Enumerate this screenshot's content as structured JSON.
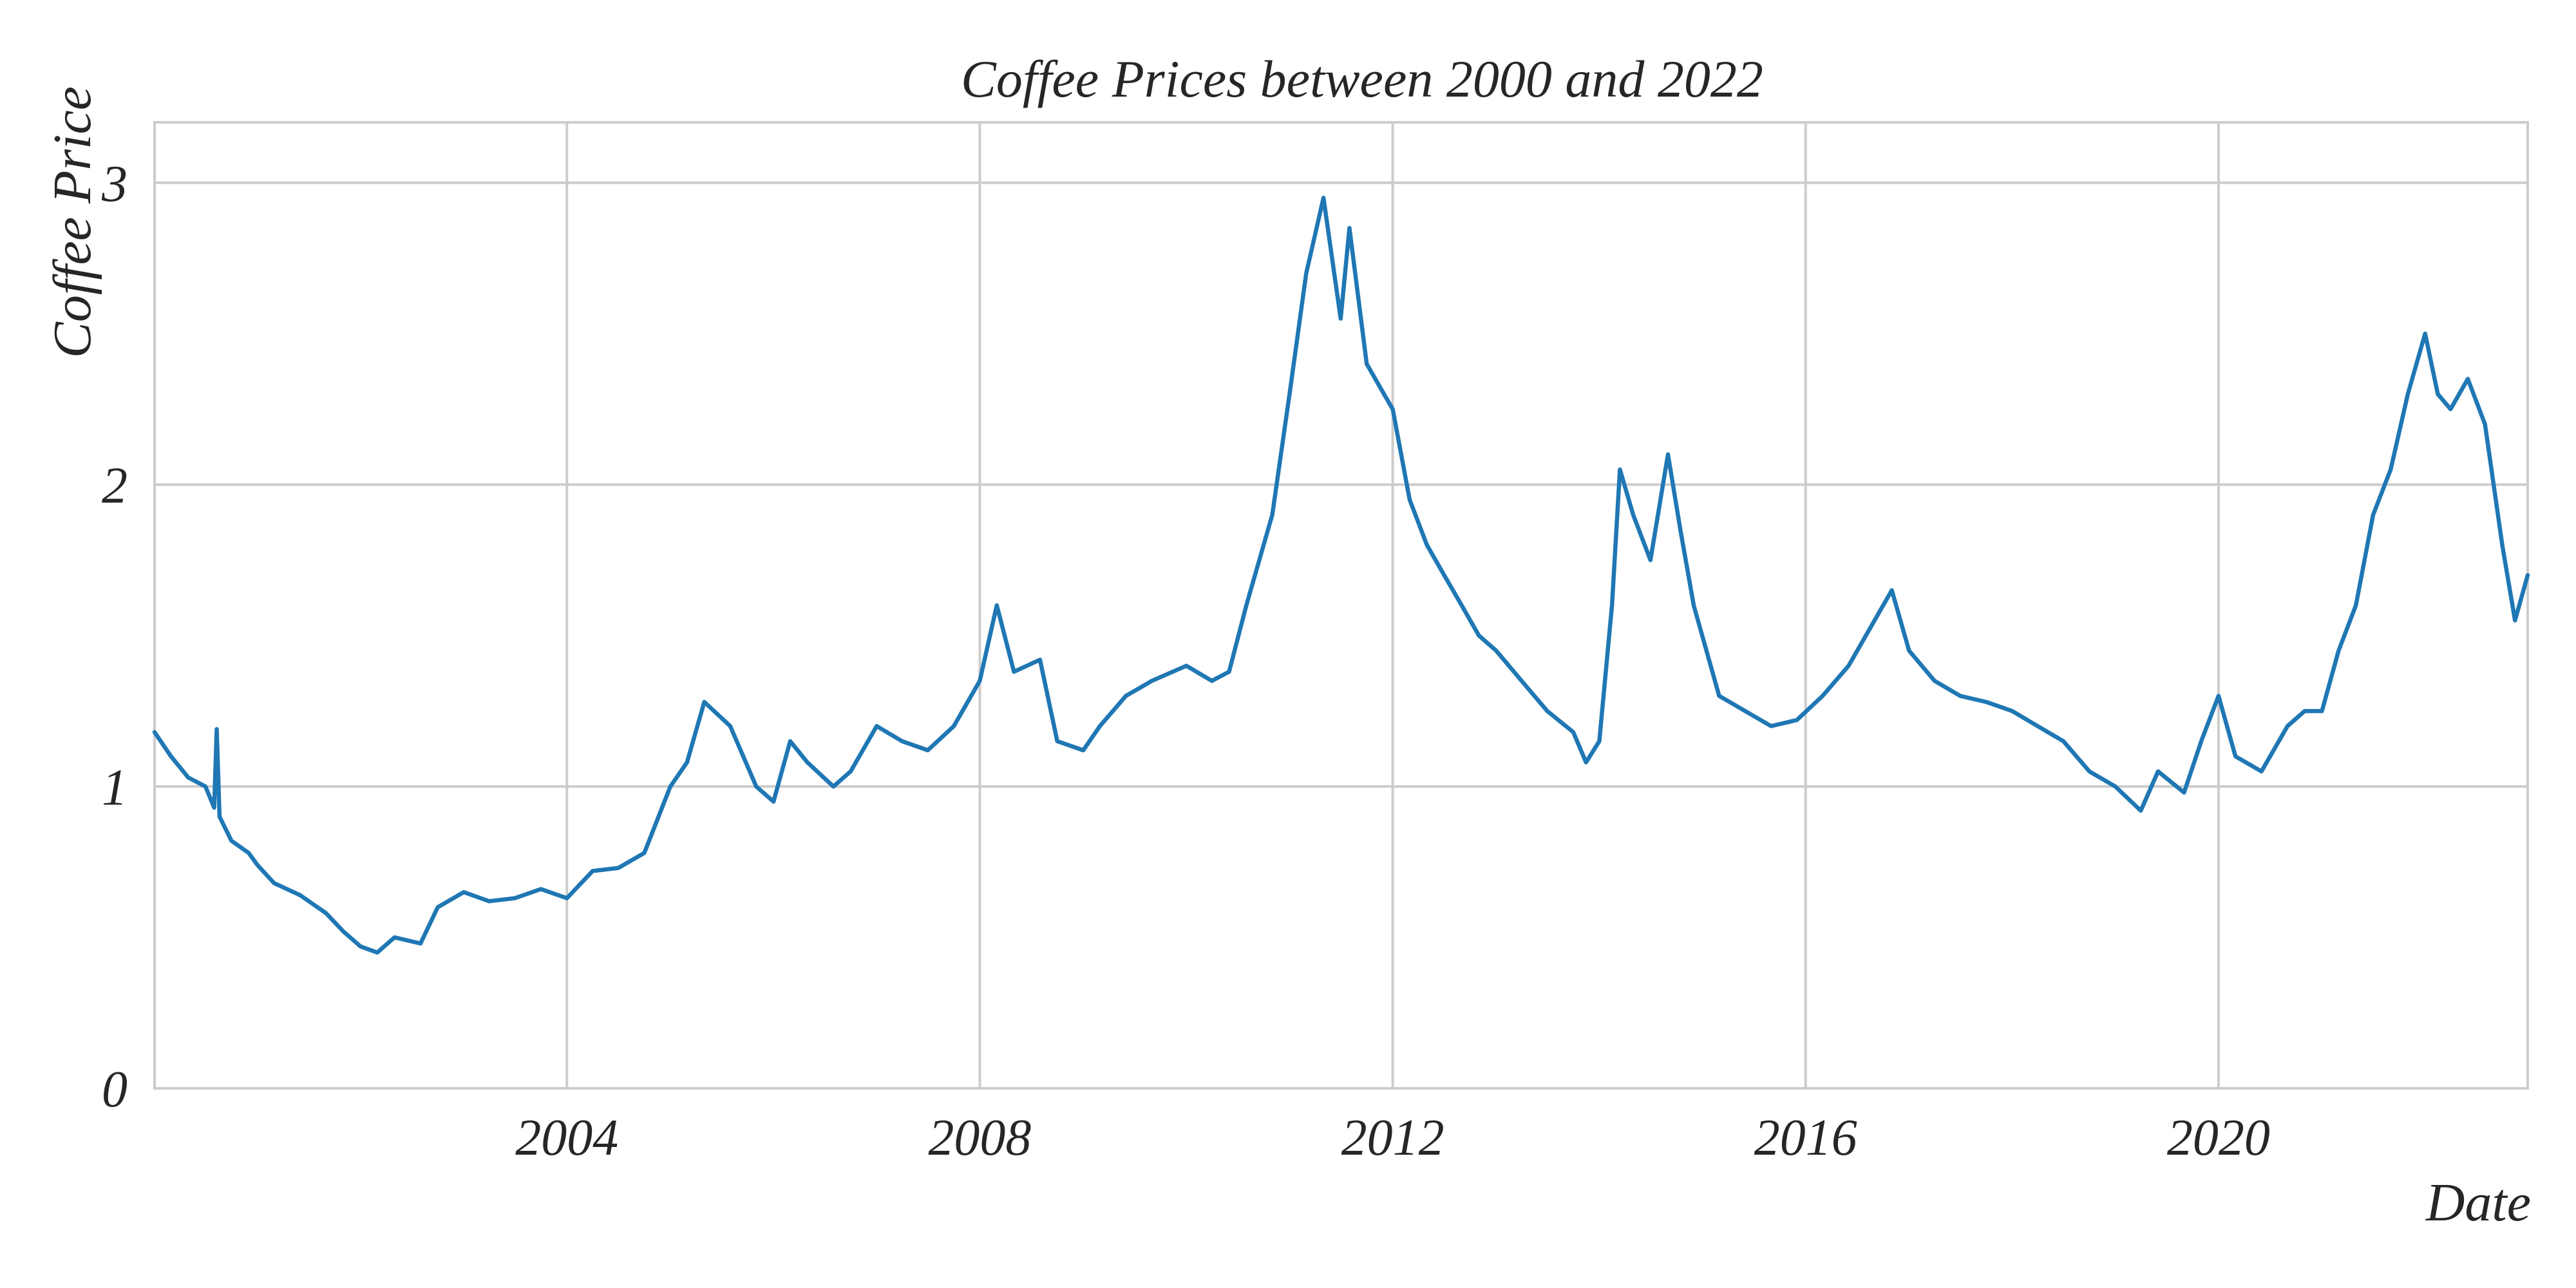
{
  "chart_data": {
    "type": "line",
    "title": "Coffee Prices between 2000 and 2022",
    "xlabel": "Date",
    "ylabel": "Coffee Price",
    "xlim": [
      "2000-01-03",
      "2022-12-30"
    ],
    "ylim": [
      0,
      3.2
    ],
    "x_ticks": [
      "2004",
      "2008",
      "2012",
      "2016",
      "2020"
    ],
    "y_ticks": [
      "0",
      "1",
      "2",
      "3"
    ],
    "grid": true,
    "legend": "none",
    "series_color": "#1f77b4",
    "series": [
      {
        "x": [
          "2000-01-03",
          "2000-03-01",
          "2000-05-01",
          "2000-07-01",
          "2000-08-01",
          "2000-08-10",
          "2000-08-20",
          "2000-10-01",
          "2000-12-01",
          "2001-01-01",
          "2001-03-01",
          "2001-06-01",
          "2001-09-01",
          "2001-11-01",
          "2002-01-01",
          "2002-03-01",
          "2002-05-01",
          "2002-08-01",
          "2002-10-01",
          "2003-01-01",
          "2003-04-01",
          "2003-07-01",
          "2003-10-01",
          "2004-01-01",
          "2004-04-01",
          "2004-07-01",
          "2004-10-01",
          "2005-01-01",
          "2005-03-01",
          "2005-05-01",
          "2005-08-01",
          "2005-11-01",
          "2006-01-01",
          "2006-03-01",
          "2006-05-01",
          "2006-08-01",
          "2006-10-01",
          "2007-01-01",
          "2007-04-01",
          "2007-07-01",
          "2007-10-01",
          "2008-01-01",
          "2008-03-01",
          "2008-05-01",
          "2008-08-01",
          "2008-10-01",
          "2009-01-01",
          "2009-03-01",
          "2009-06-01",
          "2009-09-01",
          "2010-01-01",
          "2010-04-01",
          "2010-06-01",
          "2010-08-01",
          "2010-11-01",
          "2011-01-01",
          "2011-03-01",
          "2011-05-01",
          "2011-07-01",
          "2011-08-01",
          "2011-10-01",
          "2011-12-01",
          "2012-01-01",
          "2012-03-01",
          "2012-05-01",
          "2012-07-01",
          "2012-09-01",
          "2012-11-01",
          "2013-01-01",
          "2013-04-01",
          "2013-07-01",
          "2013-10-01",
          "2013-11-15",
          "2014-01-01",
          "2014-02-15",
          "2014-03-15",
          "2014-05-01",
          "2014-07-01",
          "2014-09-01",
          "2014-10-15",
          "2014-12-01",
          "2015-03-01",
          "2015-06-01",
          "2015-09-01",
          "2015-12-01",
          "2016-03-01",
          "2016-06-01",
          "2016-09-01",
          "2016-11-01",
          "2017-01-01",
          "2017-04-01",
          "2017-07-01",
          "2017-10-01",
          "2018-01-01",
          "2018-04-01",
          "2018-07-01",
          "2018-10-01",
          "2019-01-01",
          "2019-04-01",
          "2019-06-01",
          "2019-09-01",
          "2019-11-01",
          "2020-01-01",
          "2020-03-01",
          "2020-06-01",
          "2020-09-01",
          "2020-11-01",
          "2021-01-01",
          "2021-03-01",
          "2021-05-01",
          "2021-07-01",
          "2021-09-01",
          "2021-11-01",
          "2022-01-01",
          "2022-02-15",
          "2022-04-01",
          "2022-06-01",
          "2022-08-01",
          "2022-10-01",
          "2022-11-15",
          "2022-12-30"
        ],
        "y": [
          1.18,
          1.1,
          1.03,
          1.0,
          0.93,
          1.19,
          0.9,
          0.82,
          0.78,
          0.74,
          0.68,
          0.64,
          0.58,
          0.52,
          0.47,
          0.45,
          0.5,
          0.48,
          0.6,
          0.65,
          0.62,
          0.63,
          0.66,
          0.63,
          0.72,
          0.73,
          0.78,
          1.0,
          1.08,
          1.28,
          1.2,
          1.0,
          0.95,
          1.15,
          1.08,
          1.0,
          1.05,
          1.2,
          1.15,
          1.12,
          1.2,
          1.35,
          1.6,
          1.38,
          1.42,
          1.15,
          1.12,
          1.2,
          1.3,
          1.35,
          1.4,
          1.35,
          1.38,
          1.6,
          1.9,
          2.3,
          2.7,
          2.95,
          2.55,
          2.85,
          2.4,
          2.3,
          2.25,
          1.95,
          1.8,
          1.7,
          1.6,
          1.5,
          1.45,
          1.35,
          1.25,
          1.18,
          1.08,
          1.15,
          1.6,
          2.05,
          1.9,
          1.75,
          2.1,
          1.85,
          1.6,
          1.3,
          1.25,
          1.2,
          1.22,
          1.3,
          1.4,
          1.55,
          1.65,
          1.45,
          1.35,
          1.3,
          1.28,
          1.25,
          1.2,
          1.15,
          1.05,
          1.0,
          0.92,
          1.05,
          0.98,
          1.15,
          1.3,
          1.1,
          1.05,
          1.2,
          1.25,
          1.25,
          1.45,
          1.6,
          1.9,
          2.05,
          2.3,
          2.5,
          2.3,
          2.25,
          2.35,
          2.2,
          1.8,
          1.55,
          1.7
        ]
      }
    ]
  }
}
